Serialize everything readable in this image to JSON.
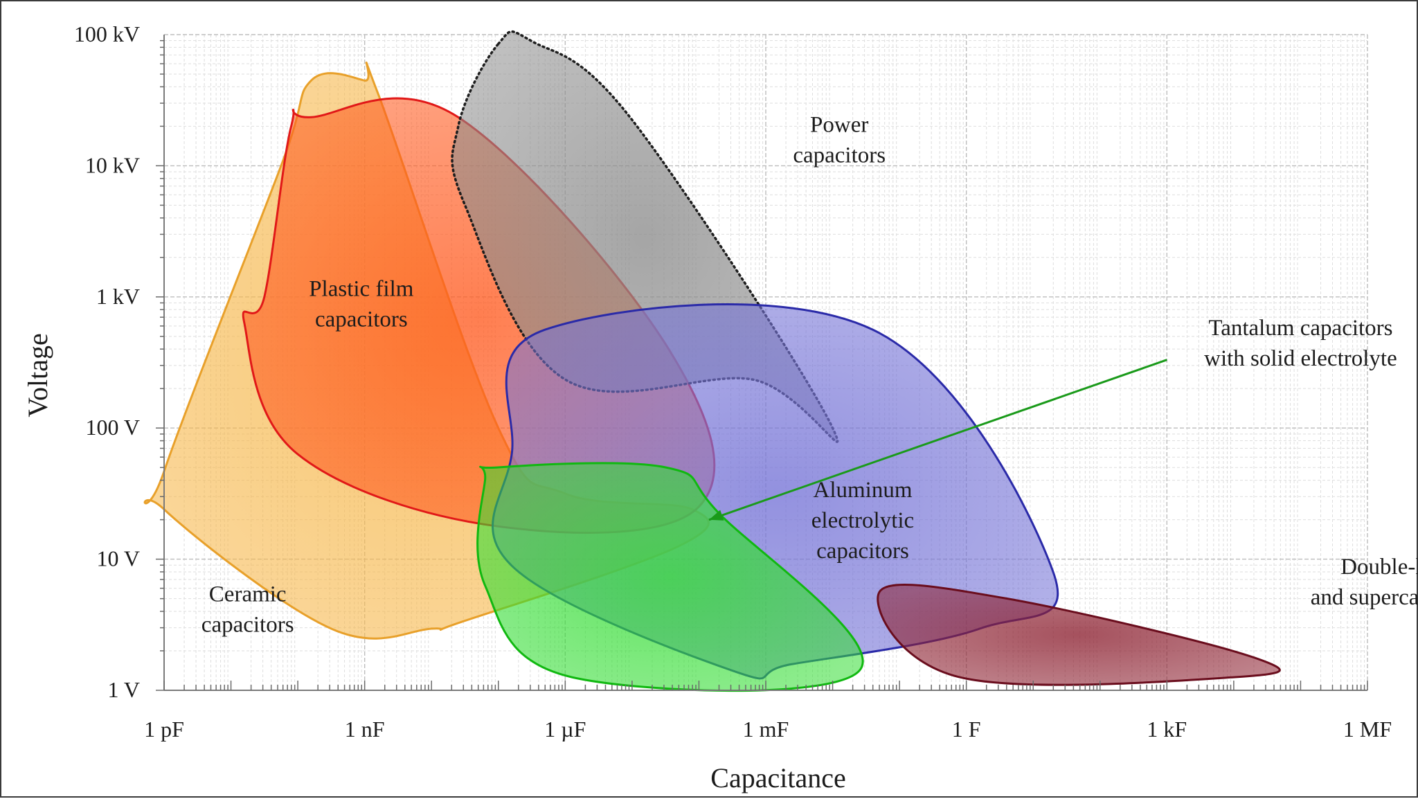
{
  "colors": {
    "ceramic_fill": "#f6b74a",
    "ceramic_edge": "#e8a02a",
    "film_fill": "#ff5a1f",
    "film_edge": "#e11818",
    "power_fill": "#8c8c8c",
    "power_edge": "#1e1e1e",
    "aluminum_fill": "#7472d6",
    "aluminum_edge": "#2a2aa8",
    "tantalum_fill": "#33dd33",
    "tantalum_edge": "#10b810",
    "supercap_fill": "#8c2030",
    "supercap_edge": "#6a0d1d",
    "arrow": "#1a9a1a",
    "grid_major": "#bdbdbd",
    "grid_minor": "#dedede"
  },
  "chart_data": {
    "type": "area",
    "title": "",
    "xlabel": "Capacitance",
    "ylabel": "Voltage",
    "x_scale": "log",
    "y_scale": "log",
    "x_unit": "F",
    "y_unit": "V",
    "xlim": [
      "1e-12",
      "1e6"
    ],
    "ylim": [
      1,
      100000
    ],
    "grid": true,
    "legend": "none",
    "x_ticks": [
      {
        "value": "1e-12",
        "label": "1 pF"
      },
      {
        "value": "1e-9",
        "label": "1 nF"
      },
      {
        "value": "1e-6",
        "label": "1 µF"
      },
      {
        "value": "1e-3",
        "label": "1 mF"
      },
      {
        "value": "1",
        "label": "1 F"
      },
      {
        "value": "1e3",
        "label": "1 kF"
      },
      {
        "value": "1e6",
        "label": "1 MF"
      }
    ],
    "y_ticks": [
      {
        "value": 1,
        "label": "1 V"
      },
      {
        "value": 10,
        "label": "10 V"
      },
      {
        "value": 100,
        "label": "100 V"
      },
      {
        "value": 1000,
        "label": "1 kV"
      },
      {
        "value": 10000,
        "label": "10 kV"
      },
      {
        "value": 100000,
        "label": "100 kV"
      }
    ],
    "series": [
      {
        "name": "Ceramic capacitors",
        "label_lines": [
          "Ceramic",
          "capacitors"
        ],
        "color_key": "ceramic",
        "dotted": false,
        "polygon_log10": [
          [
            -12,
            1.67
          ],
          [
            -10.25,
            4.0
          ],
          [
            -9.8,
            4.65
          ],
          [
            -9.0,
            4.65
          ],
          [
            -8.8,
            4.55
          ],
          [
            -7.0,
            2.0
          ],
          [
            -6.0,
            1.5
          ],
          [
            -4.1,
            1.38
          ],
          [
            -4.3,
            1.1
          ],
          [
            -7.5,
            0.53
          ],
          [
            -8.0,
            0.47
          ],
          [
            -9.5,
            0.47
          ],
          [
            -12,
            1.38
          ]
        ],
        "label_log10": [
          -10.75,
          0.62
        ]
      },
      {
        "name": "Plastic film capacitors",
        "label_lines": [
          "Plastic film",
          "capacitors"
        ],
        "color_key": "film",
        "dotted": false,
        "polygon_log10": [
          [
            -10.5,
            3.0
          ],
          [
            -10.1,
            4.3
          ],
          [
            -9.8,
            4.37
          ],
          [
            -7.6,
            4.37
          ],
          [
            -4.45,
            2.6
          ],
          [
            -4.0,
            1.4
          ],
          [
            -7.0,
            1.25
          ],
          [
            -10.0,
            1.8
          ],
          [
            -10.8,
            2.8
          ]
        ],
        "label_log10": [
          -9.05,
          2.95
        ]
      },
      {
        "name": "Power capacitors",
        "label_lines": [
          "Power",
          "capacitors"
        ],
        "color_key": "power",
        "dotted": true,
        "polygon_log10": [
          [
            -7.0,
            4.93
          ],
          [
            -6.5,
            4.95
          ],
          [
            -5.0,
            4.35
          ],
          [
            -2.0,
            2.0
          ],
          [
            -3.2,
            2.37
          ],
          [
            -6.0,
            2.37
          ],
          [
            -7.5,
            3.7
          ],
          [
            -7.6,
            4.3
          ]
        ],
        "label_log10": [
          -1.9,
          4.2
        ]
      },
      {
        "name": "Aluminum electrolytic capacitors",
        "label_lines": [
          "Aluminum",
          "electrolytic",
          "capacitors"
        ],
        "color_key": "aluminum",
        "dotted": false,
        "polygon_log10": [
          [
            -6.3,
            2.75
          ],
          [
            -1.4,
            2.75
          ],
          [
            1.3,
            0.9
          ],
          [
            0.2,
            0.47
          ],
          [
            -2.6,
            0.2
          ],
          [
            -3.5,
            0.15
          ],
          [
            -6.8,
            0.95
          ],
          [
            -6.8,
            1.8
          ]
        ],
        "label_log10": [
          -1.55,
          1.3
        ]
      },
      {
        "name": "Tantalum capacitors with solid electrolyte",
        "label_lines": [
          "Tantalum capacitors",
          "with solid electrolyte"
        ],
        "color_key": "tantalum",
        "dotted": false,
        "polygon_log10": [
          [
            -7.0,
            1.7
          ],
          [
            -4.5,
            1.7
          ],
          [
            -3.7,
            1.35
          ],
          [
            -1.6,
            0.15
          ],
          [
            -5.9,
            0.1
          ],
          [
            -7.2,
            0.8
          ],
          [
            -7.2,
            1.6
          ]
        ],
        "label_log10": [
          5.0,
          2.65
        ],
        "arrow_tail_log10": [
          3.0,
          2.52
        ],
        "arrow_head_log10": [
          -3.85,
          1.3
        ]
      },
      {
        "name": "Double-layer and supercapacitors",
        "label_lines": [
          "Double-layer",
          "and supercapacitors"
        ],
        "color_key": "supercap",
        "dotted": false,
        "polygon_log10": [
          [
            -1.3,
            0.75
          ],
          [
            0.6,
            0.7
          ],
          [
            4.3,
            0.25
          ],
          [
            4.0,
            0.1
          ],
          [
            -0.1,
            0.1
          ]
        ],
        "label_log10": [
          6.5,
          0.83
        ]
      }
    ]
  }
}
